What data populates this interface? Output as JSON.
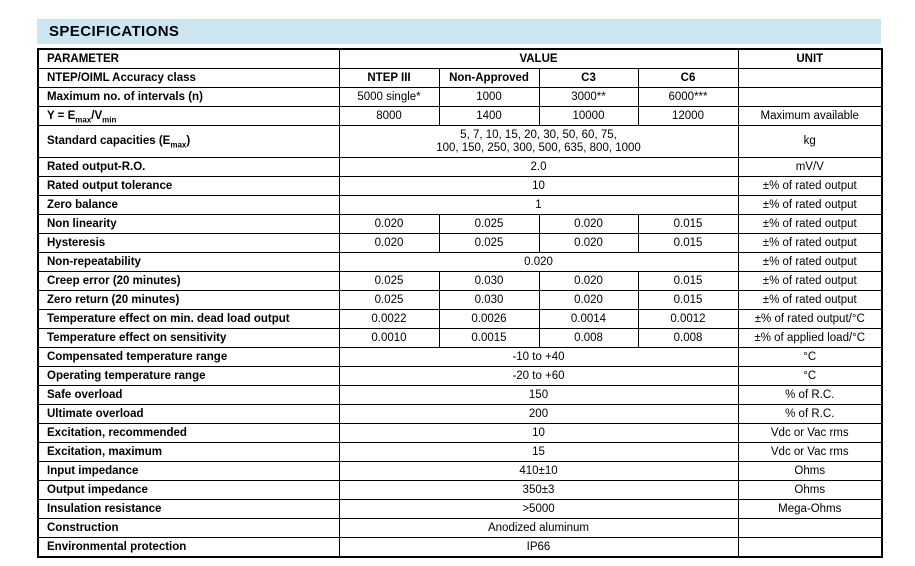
{
  "section": {
    "title": "SPECIFICATIONS"
  },
  "colors": {
    "header_bg": "#cde4f1",
    "border": "#000000",
    "text": "#000000"
  },
  "table": {
    "header": {
      "parameter": "PARAMETER",
      "value": "VALUE",
      "unit": "UNIT"
    },
    "subheader": {
      "parameter": "NTEP/OIML Accuracy class",
      "classes": [
        "NTEP III",
        "Non-Approved",
        "C3",
        "C6"
      ],
      "unit": ""
    },
    "rows": [
      {
        "parameter": "Maximum no. of intervals (n)",
        "values": [
          "5000 single*",
          "1000",
          "3000**",
          "6000***"
        ],
        "unit": ""
      },
      {
        "parameter": [
          "Y = E",
          {
            "sub": "max"
          },
          "/V",
          {
            "sub": "min"
          }
        ],
        "values": [
          "8000",
          "1400",
          "10000",
          "12000"
        ],
        "unit": "Maximum available"
      },
      {
        "parameter": [
          "Standard capacities (E",
          {
            "sub": "max"
          },
          ")"
        ],
        "span": [
          "5, 7, 10, 15, 20, 30, 50, 60, 75,",
          "100, 150, 250, 300, 500, 635, 800, 1000"
        ],
        "unit": "kg"
      },
      {
        "parameter": "Rated output-R.O.",
        "span": "2.0",
        "unit": "mV/V"
      },
      {
        "parameter": "Rated output tolerance",
        "span": "10",
        "unit": "±% of rated output"
      },
      {
        "parameter": "Zero balance",
        "span": "1",
        "unit": "±% of rated output"
      },
      {
        "parameter": "Non linearity",
        "values": [
          "0.020",
          "0.025",
          "0.020",
          "0.015"
        ],
        "unit": "±% of rated output"
      },
      {
        "parameter": "Hysteresis",
        "values": [
          "0.020",
          "0.025",
          "0.020",
          "0.015"
        ],
        "unit": "±% of rated output"
      },
      {
        "parameter": "Non-repeatability",
        "span": "0.020",
        "unit": "±% of rated output"
      },
      {
        "parameter": "Creep error (20 minutes)",
        "values": [
          "0.025",
          "0.030",
          "0.020",
          "0.015"
        ],
        "unit": "±% of rated output"
      },
      {
        "parameter": "Zero return (20 minutes)",
        "values": [
          "0.025",
          "0.030",
          "0.020",
          "0.015"
        ],
        "unit": "±% of rated output"
      },
      {
        "parameter": "Temperature effect on min. dead load output",
        "values": [
          "0.0022",
          "0.0026",
          "0.0014",
          "0.0012"
        ],
        "unit": "±% of rated output/°C"
      },
      {
        "parameter": "Temperature effect on sensitivity",
        "values": [
          "0.0010",
          "0.0015",
          "0.008",
          "0.008"
        ],
        "unit": "±% of applied load/°C"
      },
      {
        "parameter": "Compensated temperature range",
        "span": "-10 to +40",
        "unit": "°C"
      },
      {
        "parameter": "Operating temperature range",
        "span": "-20 to +60",
        "unit": "°C"
      },
      {
        "parameter": "Safe overload",
        "span": "150",
        "unit": "% of R.C."
      },
      {
        "parameter": "Ultimate overload",
        "span": "200",
        "unit": "% of R.C."
      },
      {
        "parameter": "Excitation, recommended",
        "span": "10",
        "unit": "Vdc or Vac rms"
      },
      {
        "parameter": "Excitation, maximum",
        "span": "15",
        "unit": "Vdc or Vac rms"
      },
      {
        "parameter": "Input impedance",
        "span": "410±10",
        "unit": "Ohms"
      },
      {
        "parameter": "Output impedance",
        "span": "350±3",
        "unit": "Ohms"
      },
      {
        "parameter": "Insulation resistance",
        "span": ">5000",
        "unit": "Mega-Ohms"
      },
      {
        "parameter": "Construction",
        "span": "Anodized aluminum",
        "unit": ""
      },
      {
        "parameter": "Environmental protection",
        "span": "IP66",
        "unit": ""
      }
    ]
  }
}
